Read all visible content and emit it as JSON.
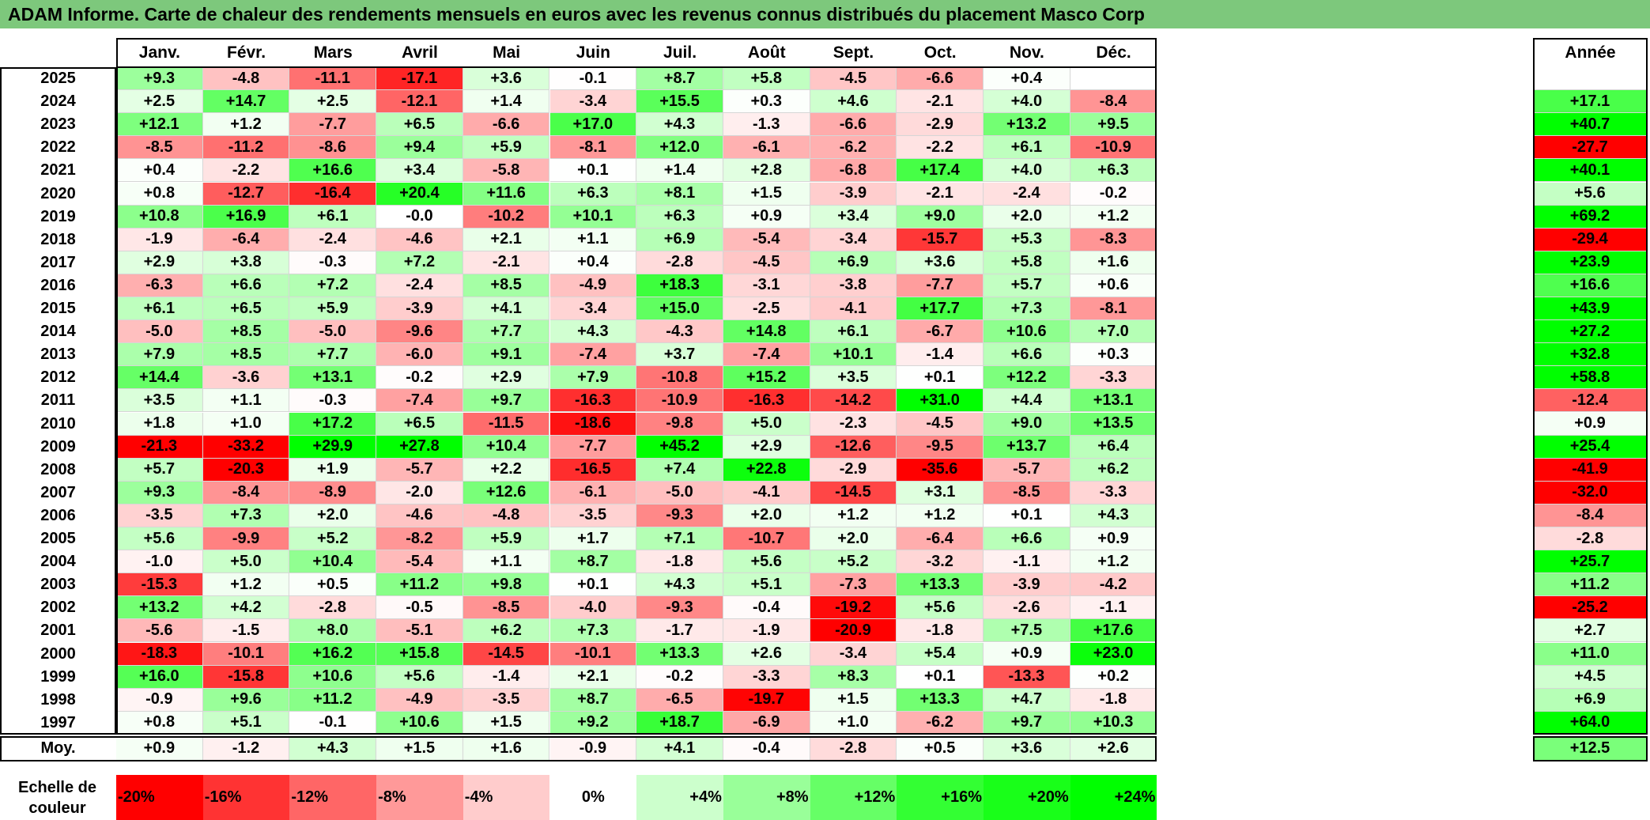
{
  "chart_data": {
    "type": "heatmap",
    "title": "ADAM Informe. Carte de chaleur des rendements mensuels en euros avec les revenus connus distribués du placement Masco Corp",
    "months": [
      "Janv.",
      "Févr.",
      "Mars",
      "Avril",
      "Mai",
      "Juin",
      "Juil.",
      "Août",
      "Sept.",
      "Oct.",
      "Nov.",
      "Déc."
    ],
    "year_header": "Année",
    "rows": [
      {
        "year": "2025",
        "values": [
          9.3,
          -4.8,
          -11.1,
          -17.1,
          3.6,
          -0.1,
          8.7,
          5.8,
          -4.5,
          -6.6,
          0.4,
          null
        ],
        "annual": null
      },
      {
        "year": "2024",
        "values": [
          2.5,
          14.7,
          2.5,
          -12.1,
          1.4,
          -3.4,
          15.5,
          0.3,
          4.6,
          -2.1,
          4.0,
          -8.4
        ],
        "annual": 17.1
      },
      {
        "year": "2023",
        "values": [
          12.1,
          1.2,
          -7.7,
          6.5,
          -6.6,
          17.0,
          4.3,
          -1.3,
          -6.6,
          -2.9,
          13.2,
          9.5
        ],
        "annual": 40.7
      },
      {
        "year": "2022",
        "values": [
          -8.5,
          -11.2,
          -8.6,
          9.4,
          5.9,
          -8.1,
          12.0,
          -6.1,
          -6.2,
          -2.2,
          6.1,
          -10.9
        ],
        "annual": -27.7
      },
      {
        "year": "2021",
        "values": [
          0.4,
          -2.2,
          16.6,
          3.4,
          -5.8,
          0.1,
          1.4,
          2.8,
          -6.8,
          17.4,
          4.0,
          6.3
        ],
        "annual": 40.1
      },
      {
        "year": "2020",
        "values": [
          0.8,
          -12.7,
          -16.4,
          20.4,
          11.6,
          6.3,
          8.1,
          1.5,
          -3.9,
          -2.1,
          -2.4,
          -0.2
        ],
        "annual": 5.6
      },
      {
        "year": "2019",
        "values": [
          10.8,
          16.9,
          6.1,
          -0.0,
          -10.2,
          10.1,
          6.3,
          0.9,
          3.4,
          9.0,
          2.0,
          1.2
        ],
        "annual": 69.2
      },
      {
        "year": "2018",
        "values": [
          -1.9,
          -6.4,
          -2.4,
          -4.6,
          2.1,
          1.1,
          6.9,
          -5.4,
          -3.4,
          -15.7,
          5.3,
          -8.3
        ],
        "annual": -29.4
      },
      {
        "year": "2017",
        "values": [
          2.9,
          3.8,
          -0.3,
          7.2,
          -2.1,
          0.4,
          -2.8,
          -4.5,
          6.9,
          3.6,
          5.8,
          1.6
        ],
        "annual": 23.9
      },
      {
        "year": "2016",
        "values": [
          -6.3,
          6.6,
          7.2,
          -2.4,
          8.5,
          -4.9,
          18.3,
          -3.1,
          -3.8,
          -7.7,
          5.7,
          0.6
        ],
        "annual": 16.6
      },
      {
        "year": "2015",
        "values": [
          6.1,
          6.5,
          5.9,
          -3.9,
          4.1,
          -3.4,
          15.0,
          -2.5,
          -4.1,
          17.7,
          7.3,
          -8.1
        ],
        "annual": 43.9
      },
      {
        "year": "2014",
        "values": [
          -5.0,
          8.5,
          -5.0,
          -9.6,
          7.7,
          4.3,
          -4.3,
          14.8,
          6.1,
          -6.7,
          10.6,
          7.0
        ],
        "annual": 27.2
      },
      {
        "year": "2013",
        "values": [
          7.9,
          8.5,
          7.7,
          -6.0,
          9.1,
          -7.4,
          3.7,
          -7.4,
          10.1,
          -1.4,
          6.6,
          0.3
        ],
        "annual": 32.8
      },
      {
        "year": "2012",
        "values": [
          14.4,
          -3.6,
          13.1,
          -0.2,
          2.9,
          7.9,
          -10.8,
          15.2,
          3.5,
          0.1,
          12.2,
          -3.3
        ],
        "annual": 58.8
      },
      {
        "year": "2011",
        "values": [
          3.5,
          1.1,
          -0.3,
          -7.4,
          9.7,
          -16.3,
          -10.9,
          -16.3,
          -14.2,
          31.0,
          4.4,
          13.1
        ],
        "annual": -12.4
      },
      {
        "year": "2010",
        "values": [
          1.8,
          1.0,
          17.2,
          6.5,
          -11.5,
          -18.6,
          -9.8,
          5.0,
          -2.3,
          -4.5,
          9.0,
          13.5
        ],
        "annual": 0.9
      },
      {
        "year": "2009",
        "values": [
          -21.3,
          -33.2,
          29.9,
          27.8,
          10.4,
          -7.7,
          45.2,
          2.9,
          -12.6,
          -9.5,
          13.7,
          6.4
        ],
        "annual": 25.4
      },
      {
        "year": "2008",
        "values": [
          5.7,
          -20.3,
          1.9,
          -5.7,
          2.2,
          -16.5,
          7.4,
          22.8,
          -2.9,
          -35.6,
          -5.7,
          6.2
        ],
        "annual": -41.9
      },
      {
        "year": "2007",
        "values": [
          9.3,
          -8.4,
          -8.9,
          -2.0,
          12.6,
          -6.1,
          -5.0,
          -4.1,
          -14.5,
          3.1,
          -8.5,
          -3.3
        ],
        "annual": -32.0
      },
      {
        "year": "2006",
        "values": [
          -3.5,
          7.3,
          2.0,
          -4.6,
          -4.8,
          -3.5,
          -9.3,
          2.0,
          1.2,
          1.2,
          0.1,
          4.3
        ],
        "annual": -8.4
      },
      {
        "year": "2005",
        "values": [
          5.6,
          -9.9,
          5.2,
          -8.2,
          5.9,
          1.7,
          7.1,
          -10.7,
          2.0,
          -6.4,
          6.6,
          0.9
        ],
        "annual": -2.8
      },
      {
        "year": "2004",
        "values": [
          -1.0,
          5.0,
          10.4,
          -5.4,
          1.1,
          8.7,
          -1.8,
          5.6,
          5.2,
          -3.2,
          -1.1,
          1.2
        ],
        "annual": 25.7
      },
      {
        "year": "2003",
        "values": [
          -15.3,
          1.2,
          0.5,
          11.2,
          9.8,
          0.1,
          4.3,
          5.1,
          -7.3,
          13.3,
          -3.9,
          -4.2
        ],
        "annual": 11.2
      },
      {
        "year": "2002",
        "values": [
          13.2,
          4.2,
          -2.8,
          -0.5,
          -8.5,
          -4.0,
          -9.3,
          -0.4,
          -19.2,
          5.6,
          -2.6,
          -1.1
        ],
        "annual": -25.2
      },
      {
        "year": "2001",
        "values": [
          -5.6,
          -1.5,
          8.0,
          -5.1,
          6.2,
          7.3,
          -1.7,
          -1.9,
          -20.9,
          -1.8,
          7.5,
          17.6
        ],
        "annual": 2.7
      },
      {
        "year": "2000",
        "values": [
          -18.3,
          -10.1,
          16.2,
          15.8,
          -14.5,
          -10.1,
          13.3,
          2.6,
          -3.4,
          5.4,
          0.9,
          23.0
        ],
        "annual": 11.0
      },
      {
        "year": "1999",
        "values": [
          16.0,
          -15.8,
          10.6,
          5.6,
          -1.4,
          2.1,
          -0.2,
          -3.3,
          8.3,
          0.1,
          -13.3,
          0.2
        ],
        "annual": 4.5
      },
      {
        "year": "1998",
        "values": [
          -0.9,
          9.6,
          11.2,
          -4.9,
          -3.5,
          8.7,
          -6.5,
          -19.7,
          1.5,
          13.3,
          4.7,
          -1.8
        ],
        "annual": 6.9
      },
      {
        "year": "1997",
        "values": [
          0.8,
          5.1,
          -0.1,
          10.6,
          1.5,
          9.2,
          18.7,
          -6.9,
          1.0,
          -6.2,
          9.7,
          10.3
        ],
        "annual": 64.0
      }
    ],
    "average": {
      "label": "Moy.",
      "values": [
        0.9,
        -1.2,
        4.3,
        1.5,
        1.6,
        -0.9,
        4.1,
        -0.4,
        -2.8,
        0.5,
        3.6,
        2.6
      ],
      "annual": 12.5
    },
    "legend": {
      "label": "Echelle de couleur",
      "steps": [
        {
          "text": "-20%",
          "color": "#ff0000"
        },
        {
          "text": "-16%",
          "color": "#ff3333"
        },
        {
          "text": "-12%",
          "color": "#ff6666"
        },
        {
          "text": "-8%",
          "color": "#ff9999"
        },
        {
          "text": "-4%",
          "color": "#ffcccc"
        },
        {
          "text": "0%",
          "color": "#ffffff"
        },
        {
          "text": "+4%",
          "color": "#ccffcc"
        },
        {
          "text": "+8%",
          "color": "#99ff99"
        },
        {
          "text": "+12%",
          "color": "#66ff66"
        },
        {
          "text": "+16%",
          "color": "#33ff33"
        },
        {
          "text": "+20%",
          "color": "#19ff19"
        },
        {
          "text": "+24%",
          "color": "#00ff00"
        }
      ]
    },
    "colors": {
      "negative_max": "#ff0000",
      "neutral": "#ffffff",
      "positive_max": "#00ff00",
      "title_bar": "#7dc87c"
    }
  }
}
